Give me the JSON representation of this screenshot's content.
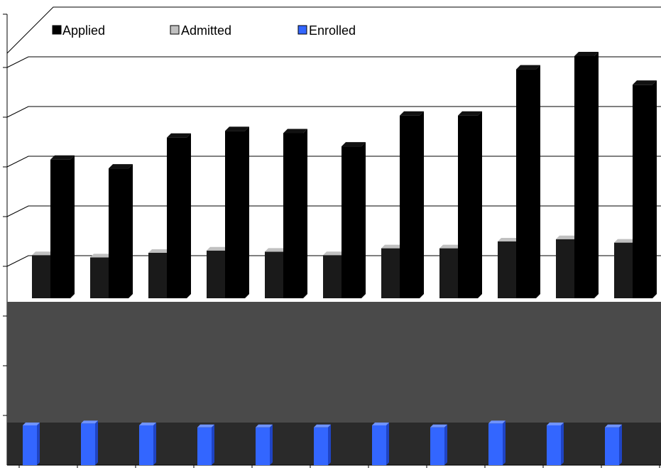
{
  "chart_data": {
    "type": "bar",
    "categories": [
      "",
      "",
      "",
      "",
      "",
      "",
      "",
      "",
      "",
      "",
      "",
      ""
    ],
    "series": [
      {
        "name": "Applied",
        "values": [
          63,
          59,
          73,
          76,
          75,
          69,
          83,
          83,
          104,
          110,
          97,
          0
        ]
      },
      {
        "name": "Admitted",
        "values": [
          38,
          36,
          40,
          42,
          41,
          38,
          44,
          44,
          50,
          52,
          49,
          0
        ]
      },
      {
        "name": "Enrolled",
        "values": [
          20,
          21,
          20,
          19,
          19,
          19,
          20,
          19,
          21,
          20,
          19,
          0
        ]
      }
    ],
    "title": "",
    "xlabel": "",
    "ylabel": "",
    "ylim": [
      0,
      120
    ],
    "grid": true,
    "legend_position": "top",
    "colors": {
      "Applied": "#000000",
      "Admitted": "#c0c0c0",
      "Enrolled": "#3366ff",
      "back_wall": "#4a4a4a",
      "floor": "#2a2a2a"
    }
  }
}
